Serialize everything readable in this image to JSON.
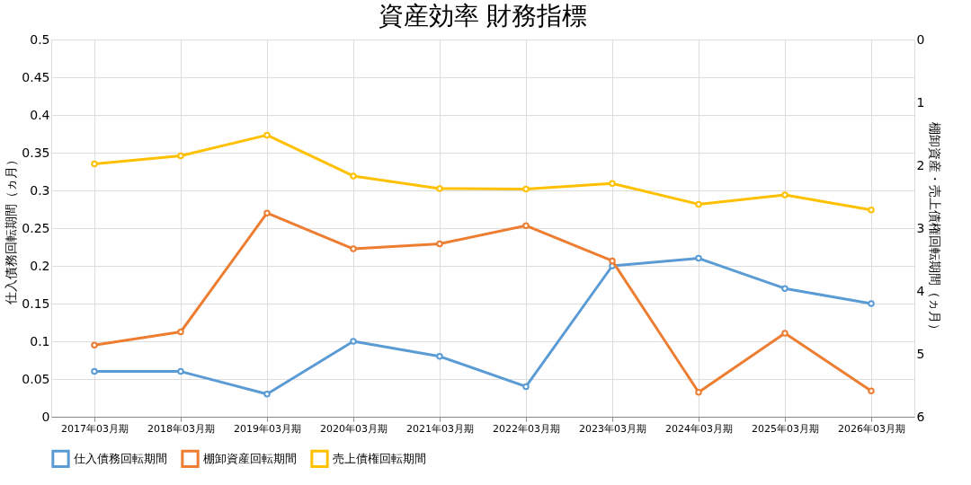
{
  "chart_data": {
    "type": "line",
    "title": "資産効率 財務指標",
    "ylabel": "仕入債務回転期間（ヵ月）",
    "y2label": "棚卸資産・売上債権回転期間（ヵ月）",
    "categories": [
      "2017年03月期",
      "2018年03月期",
      "2019年03月期",
      "2020年03月期",
      "2021年03月期",
      "2022年03月期",
      "2023年03月期",
      "2024年03月期",
      "2025年03月期",
      "2026年03月期"
    ],
    "series": [
      {
        "name": "仕入債務回転期間",
        "color": "#5b9bd5",
        "values": [
          0.06,
          0.06,
          0.03,
          0.1,
          0.08,
          0.04,
          0.2,
          0.21,
          0.17,
          0.15
        ]
      },
      {
        "name": "棚卸資産回転期間",
        "color": "#ed7d31",
        "axis": "y2",
        "values": [
          4.86,
          4.65,
          2.76,
          3.33,
          3.25,
          2.96,
          3.52,
          5.61,
          4.67,
          5.59
        ]
      },
      {
        "name": "売上債権回転期間",
        "color": "#ffc000",
        "axis": "y2",
        "values": [
          1.98,
          1.85,
          1.52,
          2.17,
          2.37,
          2.38,
          2.29,
          2.62,
          2.47,
          2.71
        ]
      }
    ],
    "ylim": [
      0,
      0.5
    ],
    "yticks": [
      0,
      0.05,
      0.1,
      0.15,
      0.2,
      0.25,
      0.3,
      0.35,
      0.4,
      0.45,
      0.5
    ],
    "y2lim": [
      6,
      0
    ],
    "y2ticks": [
      0,
      1,
      2,
      3,
      4,
      5,
      6
    ],
    "grid": true,
    "legend": "bottom",
    "marker": "circle",
    "line_style": "solid"
  }
}
